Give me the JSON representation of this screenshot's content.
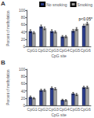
{
  "chart_data": [
    {
      "type": "bar",
      "title": "A",
      "xlabel": "CpG site",
      "ylabel": "Percent of methylation",
      "categories": [
        "CpG1",
        "CpG2",
        "CpG3",
        "CpG4",
        "CpG5",
        "CpG6"
      ],
      "series": [
        {
          "name": "No smoking",
          "color": "#2c3e8c",
          "values": [
            42,
            55,
            42,
            27,
            43,
            57
          ],
          "errors": [
            4,
            4,
            4,
            3,
            4,
            4
          ]
        },
        {
          "name": "Smoking",
          "color": "#a0a0a0",
          "values": [
            38,
            50,
            40,
            27,
            48,
            63
          ],
          "errors": [
            3,
            4,
            3,
            3,
            4,
            4
          ]
        }
      ],
      "ylim": [
        0,
        100
      ],
      "yticks": [
        0,
        20,
        40,
        60,
        80,
        100
      ],
      "grid": false,
      "legend": "upper right",
      "annotations": [
        {
          "text": "p<0.05*",
          "category": "CpG6"
        }
      ]
    },
    {
      "type": "bar",
      "title": "B",
      "xlabel": "CpG site",
      "ylabel": "Percent of methylation",
      "categories": [
        "CpG1",
        "CpG2",
        "CpG3",
        "CpG4",
        "CpG5",
        "CpG6"
      ],
      "series": [
        {
          "color": "#2c3e8c",
          "values": [
            23,
            42,
            48,
            15,
            33,
            50
          ],
          "errors": [
            3,
            3,
            3,
            2,
            3,
            3
          ]
        },
        {
          "color": "#a0a0a0",
          "values": [
            20,
            42,
            46,
            14,
            30,
            50
          ],
          "errors": [
            2,
            3,
            3,
            2,
            3,
            3
          ]
        }
      ],
      "ylim": [
        0,
        100
      ],
      "yticks": [
        0,
        20,
        40,
        60,
        80,
        100
      ],
      "grid": false
    }
  ]
}
